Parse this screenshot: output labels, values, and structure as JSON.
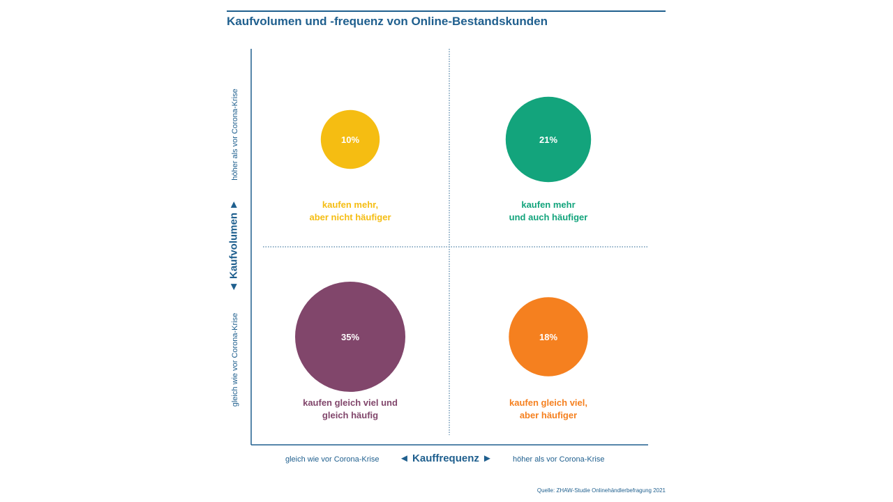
{
  "title": "Kaufvolumen und -frequenz von Online-Bestandskunden",
  "source": "Quelle: ZHAW-Studie Onlinehändlerbefragung 2021",
  "chart_data": {
    "type": "scatter",
    "xlabel": "Kauffrequenz",
    "ylabel": "Kaufvolumen",
    "x_tick_labels": [
      "gleich wie vor Corona-Krise",
      "höher als vor Corona-Krise"
    ],
    "y_tick_labels": [
      "gleich wie vor Corona-Krise",
      "höher als vor Corona-Krise"
    ],
    "grid": true,
    "points": [
      {
        "x": "gleich wie vor Corona-Krise",
        "y": "höher als vor Corona-Krise",
        "value": 10,
        "value_label": "10%",
        "label_lines": [
          "kaufen mehr,",
          "aber nicht häufiger"
        ],
        "color": "#f5bd12"
      },
      {
        "x": "höher als vor Corona-Krise",
        "y": "höher als vor Corona-Krise",
        "value": 21,
        "value_label": "21%",
        "label_lines": [
          "kaufen mehr",
          "und auch häufiger"
        ],
        "color": "#13a47c"
      },
      {
        "x": "gleich wie vor Corona-Krise",
        "y": "gleich wie vor Corona-Krise",
        "value": 35,
        "value_label": "35%",
        "label_lines": [
          "kaufen gleich viel und",
          "gleich häufig"
        ],
        "color": "#81466b"
      },
      {
        "x": "höher als vor Corona-Krise",
        "y": "gleich wie vor Corona-Krise",
        "value": 18,
        "value_label": "18%",
        "label_lines": [
          "kaufen gleich viel,",
          "aber häufiger"
        ],
        "color": "#f5801f"
      }
    ],
    "axis_color": "#1f5f8e",
    "arrow_left": "◄",
    "arrow_right": "►",
    "arrow_up": "▲",
    "arrow_down": "▼"
  }
}
